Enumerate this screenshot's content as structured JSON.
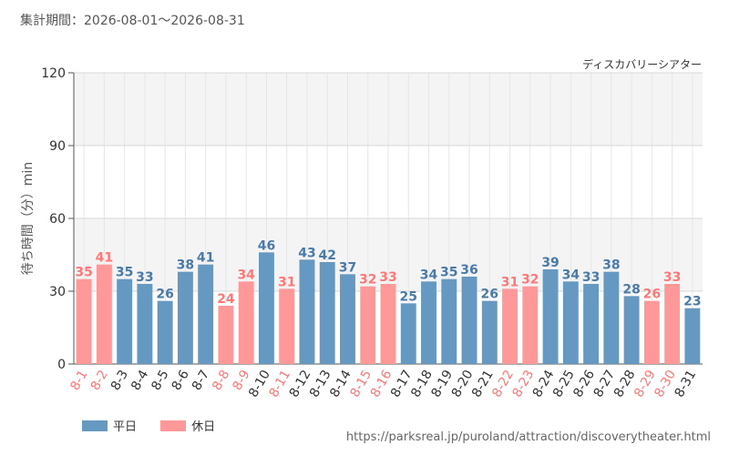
{
  "header": {
    "period": "集計期間：2026-08-01〜2026-08-31",
    "attraction": "ディスカバリーシアター"
  },
  "legend": {
    "weekday_label": "平日",
    "holiday_label": "休日"
  },
  "colors": {
    "weekday": "#6699c1",
    "holiday": "#ff9999",
    "weekday_text": "#4a7aa8",
    "holiday_text": "#ff7777",
    "band": "#f4f4f4"
  },
  "source": "https://parksreal.jp/puroland/attraction/discoverytheater.html",
  "chart_data": {
    "type": "bar",
    "ylabel": "待ち時間（分）min",
    "ylim": [
      0,
      120
    ],
    "yticks": [
      0,
      30,
      60,
      90,
      120
    ],
    "grid": true,
    "legend_position": "bottom-left",
    "categories": [
      "8-1",
      "8-2",
      "8-3",
      "8-4",
      "8-5",
      "8-6",
      "8-7",
      "8-8",
      "8-9",
      "8-10",
      "8-11",
      "8-12",
      "8-13",
      "8-14",
      "8-15",
      "8-16",
      "8-17",
      "8-18",
      "8-19",
      "8-20",
      "8-21",
      "8-22",
      "8-23",
      "8-24",
      "8-25",
      "8-26",
      "8-27",
      "8-28",
      "8-29",
      "8-30",
      "8-31"
    ],
    "values": [
      35,
      41,
      35,
      33,
      26,
      38,
      41,
      24,
      34,
      46,
      31,
      43,
      42,
      37,
      32,
      33,
      25,
      34,
      35,
      36,
      26,
      31,
      32,
      39,
      34,
      33,
      38,
      28,
      26,
      33,
      23
    ],
    "day_type": [
      "holiday",
      "holiday",
      "weekday",
      "weekday",
      "weekday",
      "weekday",
      "weekday",
      "holiday",
      "holiday",
      "weekday",
      "holiday",
      "weekday",
      "weekday",
      "weekday",
      "holiday",
      "holiday",
      "weekday",
      "weekday",
      "weekday",
      "weekday",
      "weekday",
      "holiday",
      "holiday",
      "weekday",
      "weekday",
      "weekday",
      "weekday",
      "weekday",
      "holiday",
      "holiday",
      "weekday"
    ]
  }
}
